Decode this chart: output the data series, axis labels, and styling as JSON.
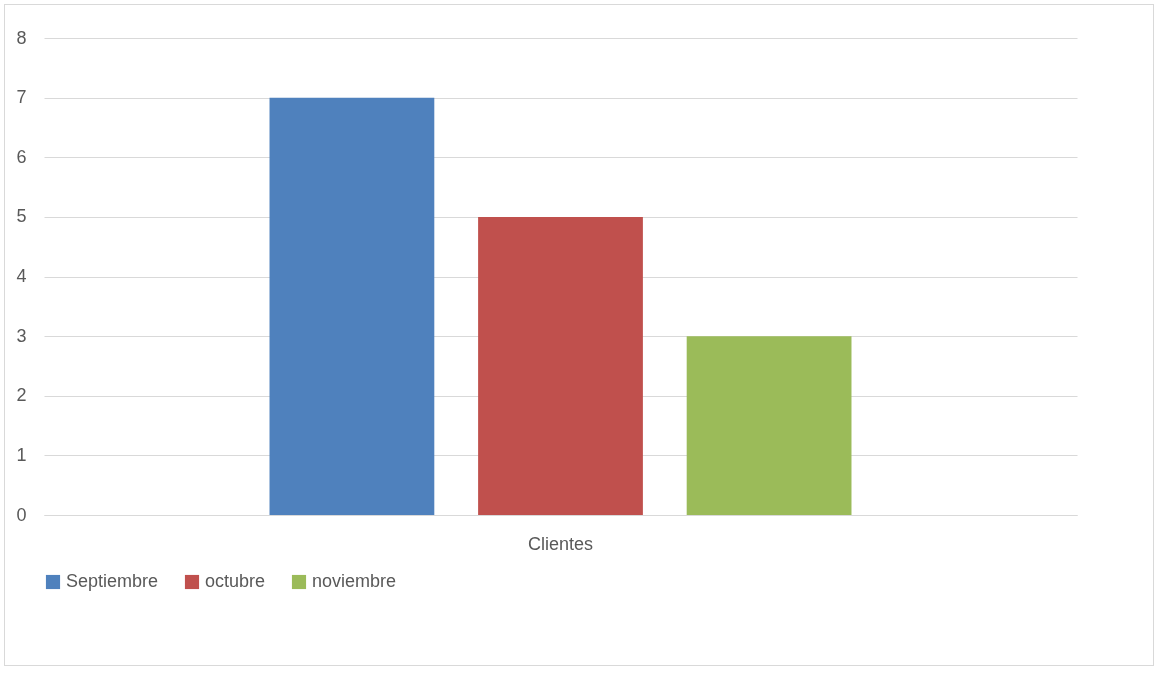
{
  "chart_data": {
    "type": "bar",
    "categories": [
      "Clientes"
    ],
    "series": [
      {
        "name": "Septiembre",
        "color": "#4f81bd",
        "values": [
          7
        ]
      },
      {
        "name": "octubre",
        "color": "#c0504d",
        "values": [
          5
        ]
      },
      {
        "name": "noviembre",
        "color": "#9bbb59",
        "values": [
          3
        ]
      }
    ],
    "ylim": [
      0,
      8
    ],
    "yticks": [
      0,
      1,
      2,
      3,
      4,
      5,
      6,
      7,
      8
    ],
    "grid": "y",
    "legend": "bottom"
  }
}
